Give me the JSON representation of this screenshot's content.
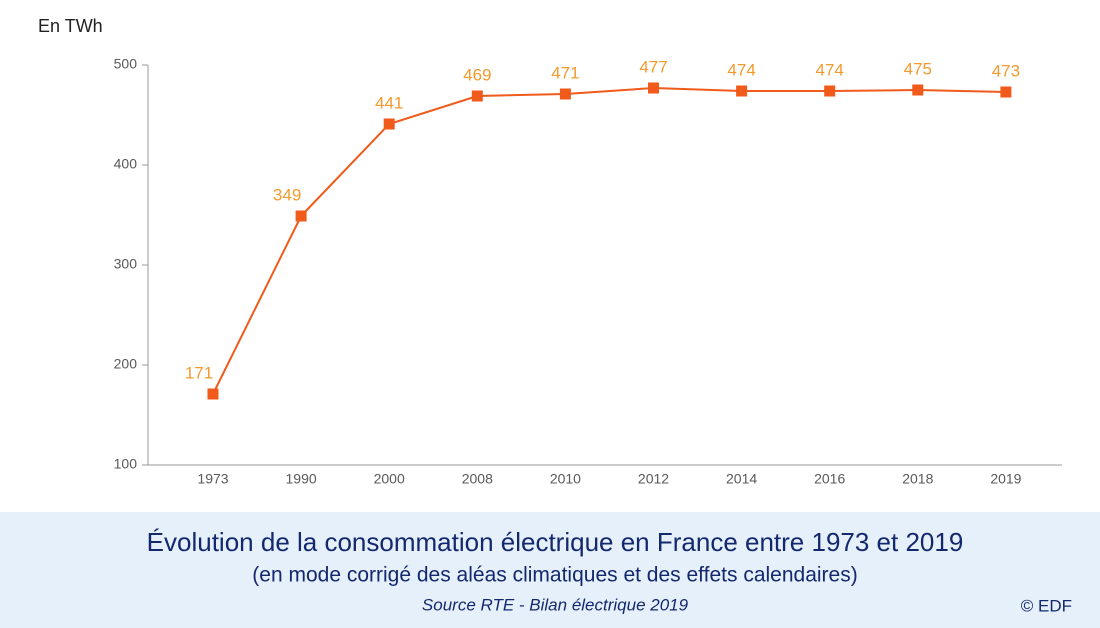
{
  "chart_data": {
    "type": "line",
    "y_axis_label": "En TWh",
    "title": "Évolution de la consommation électrique en France entre 1973 et 2019",
    "subtitle": "(en mode corrigé des aléas climatiques et des effets calendaires)",
    "source": "Source RTE - Bilan électrique 2019",
    "credit": "© EDF",
    "categories": [
      "1973",
      "1990",
      "2000",
      "2008",
      "2010",
      "2012",
      "2014",
      "2016",
      "2018",
      "2019"
    ],
    "values": [
      171,
      349,
      441,
      469,
      471,
      477,
      474,
      474,
      475,
      473
    ],
    "color": "#f05a1a",
    "value_label_color": "#f39a2e",
    "ylim": [
      100,
      500
    ],
    "yticks": [
      100,
      200,
      300,
      400,
      500
    ]
  }
}
